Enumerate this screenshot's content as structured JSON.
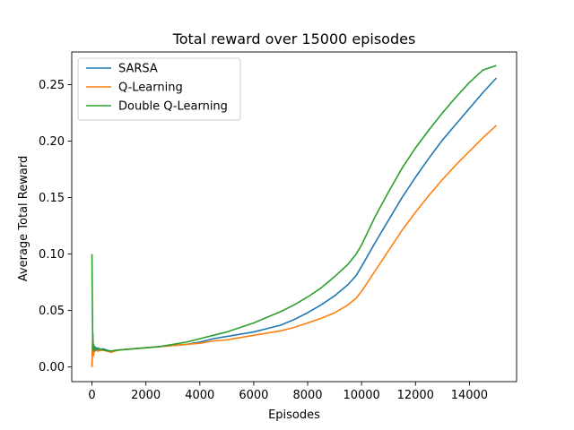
{
  "chart_data": {
    "type": "line",
    "title": "Total reward over 15000 episodes",
    "xlabel": "Episodes",
    "ylabel": "Average Total Reward",
    "xlim": [
      -750,
      15750
    ],
    "ylim": [
      -0.013,
      0.279
    ],
    "xticks": [
      0,
      2000,
      4000,
      6000,
      8000,
      10000,
      12000,
      14000
    ],
    "xtick_labels": [
      "0",
      "2000",
      "4000",
      "6000",
      "8000",
      "10000",
      "12000",
      "14000"
    ],
    "yticks": [
      0.0,
      0.05,
      0.1,
      0.15,
      0.2,
      0.25
    ],
    "ytick_labels": [
      "0.00",
      "0.05",
      "0.10",
      "0.15",
      "0.20",
      "0.25"
    ],
    "grid": false,
    "legend_position": "top-left",
    "series": [
      {
        "name": "SARSA",
        "color": "#1f77b4",
        "x": [
          0,
          30,
          60,
          100,
          200,
          400,
          700,
          1000,
          1500,
          2000,
          2500,
          3000,
          3500,
          4000,
          4500,
          5000,
          5500,
          6000,
          6500,
          7000,
          7500,
          8000,
          8500,
          9000,
          9500,
          9800,
          10000,
          10500,
          11000,
          11500,
          12000,
          12500,
          13000,
          13500,
          14000,
          14500,
          15000
        ],
        "y": [
          0.0,
          0.03,
          0.012,
          0.018,
          0.015,
          0.016,
          0.014,
          0.015,
          0.016,
          0.017,
          0.018,
          0.019,
          0.02,
          0.022,
          0.025,
          0.027,
          0.029,
          0.031,
          0.034,
          0.037,
          0.042,
          0.048,
          0.055,
          0.063,
          0.073,
          0.081,
          0.089,
          0.11,
          0.13,
          0.15,
          0.168,
          0.185,
          0.201,
          0.215,
          0.229,
          0.243,
          0.256
        ]
      },
      {
        "name": "Q-Learning",
        "color": "#ff7f0e",
        "x": [
          0,
          30,
          60,
          100,
          200,
          400,
          700,
          1000,
          1500,
          2000,
          2500,
          3000,
          3500,
          4000,
          4500,
          5000,
          5500,
          6000,
          6500,
          7000,
          7500,
          8000,
          8500,
          9000,
          9500,
          9800,
          10000,
          10500,
          11000,
          11500,
          12000,
          12500,
          13000,
          13500,
          14000,
          14500,
          15000
        ],
        "y": [
          0.0,
          0.025,
          0.01,
          0.016,
          0.014,
          0.015,
          0.013,
          0.015,
          0.016,
          0.017,
          0.018,
          0.019,
          0.02,
          0.021,
          0.023,
          0.024,
          0.026,
          0.028,
          0.03,
          0.032,
          0.035,
          0.039,
          0.043,
          0.048,
          0.055,
          0.061,
          0.067,
          0.085,
          0.103,
          0.121,
          0.137,
          0.152,
          0.166,
          0.179,
          0.191,
          0.203,
          0.214
        ]
      },
      {
        "name": "Double Q-Learning",
        "color": "#2ca02c",
        "x": [
          0,
          30,
          60,
          100,
          200,
          400,
          700,
          1000,
          1500,
          2000,
          2500,
          3000,
          3500,
          4000,
          4500,
          5000,
          5500,
          6000,
          6500,
          7000,
          7500,
          8000,
          8500,
          9000,
          9500,
          9800,
          10000,
          10500,
          11000,
          11500,
          12000,
          12500,
          13000,
          13500,
          14000,
          14500,
          15000
        ],
        "y": [
          0.1,
          0.015,
          0.02,
          0.014,
          0.017,
          0.015,
          0.014,
          0.015,
          0.016,
          0.017,
          0.018,
          0.02,
          0.022,
          0.025,
          0.028,
          0.031,
          0.035,
          0.039,
          0.044,
          0.049,
          0.055,
          0.062,
          0.07,
          0.08,
          0.091,
          0.1,
          0.108,
          0.133,
          0.155,
          0.176,
          0.194,
          0.21,
          0.225,
          0.239,
          0.252,
          0.263,
          0.267
        ]
      }
    ]
  }
}
